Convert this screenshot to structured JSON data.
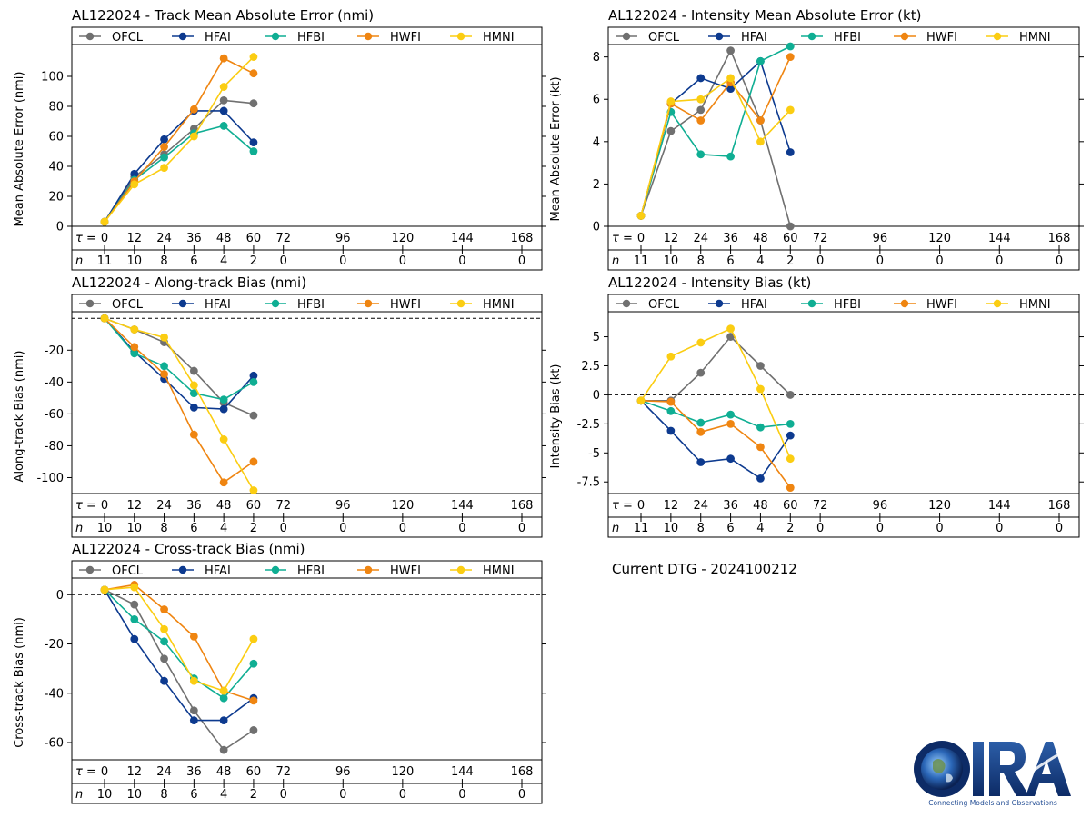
{
  "storm": "AL122024",
  "dtg_text": "Current DTG - 2024100212",
  "logo": {
    "title": "CIRA",
    "tagline": "Connecting Models and Observations"
  },
  "tau_label": "τ =",
  "n_label": "n",
  "tau_ticks": [
    0,
    12,
    24,
    36,
    48,
    60,
    72,
    96,
    120,
    144,
    168
  ],
  "colors": {
    "OFCL": "#707070",
    "HFAI": "#0d3a8f",
    "HFBI": "#0fae93",
    "HWFI": "#ef8511",
    "HMNI": "#fbcd12"
  },
  "legend": [
    "OFCL",
    "HFAI",
    "HFBI",
    "HWFI",
    "HMNI"
  ],
  "chart_data": [
    {
      "id": "track_mae",
      "type": "line",
      "title": "AL122024 - Track Mean Absolute Error (nmi)",
      "ylabel": "Mean Absolute Error (nmi)",
      "xlabel": "",
      "ylim": [
        0,
        120
      ],
      "yticks": [
        0,
        20,
        40,
        60,
        80,
        100
      ],
      "zero_line": false,
      "n_counts": [
        11,
        10,
        8,
        6,
        4,
        2,
        0,
        0,
        0,
        0,
        0
      ],
      "x": [
        0,
        12,
        24,
        36,
        48,
        60
      ],
      "series": [
        {
          "name": "OFCL",
          "values": [
            3,
            33,
            48,
            65,
            84,
            82
          ]
        },
        {
          "name": "HFAI",
          "values": [
            3,
            35,
            58,
            77,
            77,
            56
          ]
        },
        {
          "name": "HFBI",
          "values": [
            3,
            31,
            46,
            62,
            67,
            50
          ]
        },
        {
          "name": "HWFI",
          "values": [
            3,
            30,
            53,
            78,
            112,
            102
          ]
        },
        {
          "name": "HMNI",
          "values": [
            3,
            28,
            39,
            60,
            93,
            113
          ]
        }
      ]
    },
    {
      "id": "int_mae",
      "type": "line",
      "title": "AL122024 - Intensity Mean Absolute Error (kt)",
      "ylabel": "Mean Absolute Error (kt)",
      "xlabel": "",
      "ylim": [
        0,
        8.5
      ],
      "yticks": [
        0,
        2,
        4,
        6,
        8
      ],
      "zero_line": false,
      "n_counts": [
        11,
        10,
        8,
        6,
        4,
        2,
        0,
        0,
        0,
        0,
        0
      ],
      "x": [
        0,
        12,
        24,
        36,
        48,
        60
      ],
      "series": [
        {
          "name": "OFCL",
          "values": [
            0.5,
            4.5,
            5.5,
            8.3,
            5.0,
            0.0
          ]
        },
        {
          "name": "HFAI",
          "values": [
            0.5,
            5.8,
            7.0,
            6.5,
            7.8,
            3.5
          ]
        },
        {
          "name": "HFBI",
          "values": [
            0.5,
            5.4,
            3.4,
            3.3,
            7.8,
            8.5
          ]
        },
        {
          "name": "HWFI",
          "values": [
            0.5,
            5.8,
            5.0,
            6.8,
            5.0,
            8.0
          ]
        },
        {
          "name": "HMNI",
          "values": [
            0.5,
            5.9,
            6.0,
            7.0,
            4.0,
            5.5
          ]
        }
      ]
    },
    {
      "id": "along_bias",
      "type": "line",
      "title": "AL122024 - Along-track Bias (nmi)",
      "ylabel": "Along-track Bias (nmi)",
      "xlabel": "",
      "ylim": [
        -110,
        3
      ],
      "yticks": [
        -100,
        -80,
        -60,
        -40,
        -20
      ],
      "zero_line": true,
      "n_counts": [
        10,
        10,
        8,
        6,
        4,
        2,
        0,
        0,
        0,
        0,
        0
      ],
      "x": [
        0,
        12,
        24,
        36,
        48,
        60
      ],
      "series": [
        {
          "name": "OFCL",
          "values": [
            0,
            -7,
            -15,
            -33,
            -53,
            -61
          ]
        },
        {
          "name": "HFAI",
          "values": [
            0,
            -21,
            -38,
            -56,
            -57,
            -36
          ]
        },
        {
          "name": "HFBI",
          "values": [
            0,
            -22,
            -30,
            -47,
            -51,
            -40
          ]
        },
        {
          "name": "HWFI",
          "values": [
            0,
            -18,
            -35,
            -73,
            -103,
            -90
          ]
        },
        {
          "name": "HMNI",
          "values": [
            0,
            -7,
            -12,
            -42,
            -76,
            -108
          ]
        }
      ]
    },
    {
      "id": "int_bias",
      "type": "line",
      "title": "AL122024 - Intensity Bias (kt)",
      "ylabel": "Intensity Bias (kt)",
      "xlabel": "",
      "ylim": [
        -8.5,
        7
      ],
      "yticks": [
        -7.5,
        -5.0,
        -2.5,
        0.0,
        2.5,
        5.0
      ],
      "zero_line": true,
      "n_counts": [
        11,
        10,
        8,
        6,
        4,
        2,
        0,
        0,
        0,
        0,
        0
      ],
      "x": [
        0,
        12,
        24,
        36,
        48,
        60
      ],
      "series": [
        {
          "name": "OFCL",
          "values": [
            -0.5,
            -0.5,
            1.9,
            5.0,
            2.5,
            0.0
          ]
        },
        {
          "name": "HFAI",
          "values": [
            -0.5,
            -3.1,
            -5.8,
            -5.5,
            -7.2,
            -3.5
          ]
        },
        {
          "name": "HFBI",
          "values": [
            -0.5,
            -1.4,
            -2.4,
            -1.7,
            -2.8,
            -2.5
          ]
        },
        {
          "name": "HWFI",
          "values": [
            -0.5,
            -0.6,
            -3.2,
            -2.5,
            -4.5,
            -8.0
          ]
        },
        {
          "name": "HMNI",
          "values": [
            -0.5,
            3.3,
            4.5,
            5.7,
            0.5,
            -5.5
          ]
        }
      ]
    },
    {
      "id": "cross_bias",
      "type": "line",
      "title": "AL122024 - Cross-track Bias (nmi)",
      "ylabel": "Cross-track Bias (nmi)",
      "xlabel": "",
      "ylim": [
        -67,
        6
      ],
      "yticks": [
        -60,
        -40,
        -20,
        0
      ],
      "zero_line": true,
      "n_counts": [
        10,
        10,
        8,
        6,
        4,
        2,
        0,
        0,
        0,
        0,
        0
      ],
      "x": [
        0,
        12,
        24,
        36,
        48,
        60
      ],
      "series": [
        {
          "name": "OFCL",
          "values": [
            2,
            -4,
            -26,
            -47,
            -63,
            -55
          ]
        },
        {
          "name": "HFAI",
          "values": [
            2,
            -18,
            -35,
            -51,
            -51,
            -42
          ]
        },
        {
          "name": "HFBI",
          "values": [
            2,
            -10,
            -19,
            -34,
            -42,
            -28
          ]
        },
        {
          "name": "HWFI",
          "values": [
            2,
            4,
            -6,
            -17,
            -39,
            -43
          ]
        },
        {
          "name": "HMNI",
          "values": [
            2,
            3,
            -14,
            -35,
            -39,
            -18
          ]
        }
      ]
    }
  ]
}
